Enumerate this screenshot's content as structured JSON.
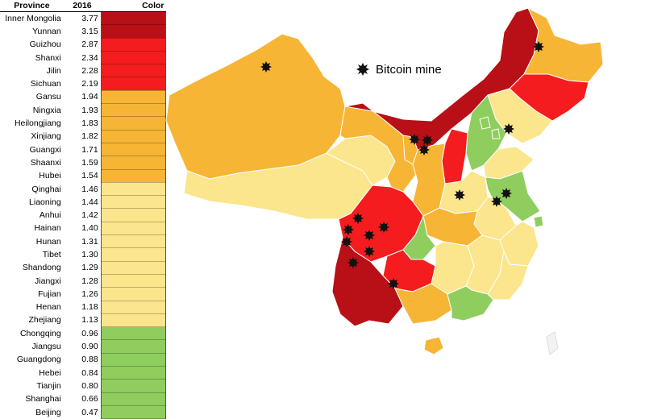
{
  "table": {
    "headers": {
      "province": "Province",
      "year": "2016",
      "color": "Color"
    },
    "rows": [
      {
        "province": "Inner Mongolia",
        "value": "3.77",
        "color": "#b81016"
      },
      {
        "province": "Yunnan",
        "value": "3.15",
        "color": "#b81016"
      },
      {
        "province": "Guizhou",
        "value": "2.87",
        "color": "#f41c1e"
      },
      {
        "province": "Shanxi",
        "value": "2.34",
        "color": "#f41c1e"
      },
      {
        "province": "Jilin",
        "value": "2.28",
        "color": "#f41c1e"
      },
      {
        "province": "Sichuan",
        "value": "2.19",
        "color": "#f41c1e"
      },
      {
        "province": "Gansu",
        "value": "1.94",
        "color": "#f6b535"
      },
      {
        "province": "Ningxia",
        "value": "1.93",
        "color": "#f6b535"
      },
      {
        "province": "Heilongjiang",
        "value": "1.83",
        "color": "#f6b535"
      },
      {
        "province": "Xinjiang",
        "value": "1.82",
        "color": "#f6b535"
      },
      {
        "province": "Guangxi",
        "value": "1.71",
        "color": "#f6b535"
      },
      {
        "province": "Shaanxi",
        "value": "1.59",
        "color": "#f6b535"
      },
      {
        "province": "Hubei",
        "value": "1.54",
        "color": "#f6b535"
      },
      {
        "province": "Qinghai",
        "value": "1.46",
        "color": "#fbe58d"
      },
      {
        "province": "Liaoning",
        "value": "1.44",
        "color": "#fbe58d"
      },
      {
        "province": "Anhui",
        "value": "1.42",
        "color": "#fbe58d"
      },
      {
        "province": "Hainan",
        "value": "1.40",
        "color": "#fbe58d"
      },
      {
        "province": "Hunan",
        "value": "1.31",
        "color": "#fbe58d"
      },
      {
        "province": "Tibet",
        "value": "1.30",
        "color": "#fbe58d"
      },
      {
        "province": "Shandong",
        "value": "1.29",
        "color": "#fbe58d"
      },
      {
        "province": "Jiangxi",
        "value": "1.28",
        "color": "#fbe58d"
      },
      {
        "province": "Fujian",
        "value": "1.26",
        "color": "#fbe58d"
      },
      {
        "province": "Henan",
        "value": "1.18",
        "color": "#fbe58d"
      },
      {
        "province": "Zhejiang",
        "value": "1.13",
        "color": "#fbe58d"
      },
      {
        "province": "Chongqing",
        "value": "0.96",
        "color": "#8fcd5e"
      },
      {
        "province": "Jiangsu",
        "value": "0.90",
        "color": "#8fcd5e"
      },
      {
        "province": "Guangdong",
        "value": "0.88",
        "color": "#8fcd5e"
      },
      {
        "province": "Hebei",
        "value": "0.84",
        "color": "#8fcd5e"
      },
      {
        "province": "Tianjin",
        "value": "0.80",
        "color": "#8fcd5e"
      },
      {
        "province": "Shanghai",
        "value": "0.66",
        "color": "#8fcd5e"
      },
      {
        "province": "Beijing",
        "value": "0.47",
        "color": "#8fcd5e"
      }
    ]
  },
  "legend": {
    "label": "Bitcoin mine",
    "marker_icon": "star-burst-icon"
  },
  "palette": {
    "dark_red": "#b81016",
    "red": "#f41c1e",
    "orange": "#f6b535",
    "light_yellow": "#fbe58d",
    "green": "#8fcd5e",
    "marker": "#111111"
  }
}
